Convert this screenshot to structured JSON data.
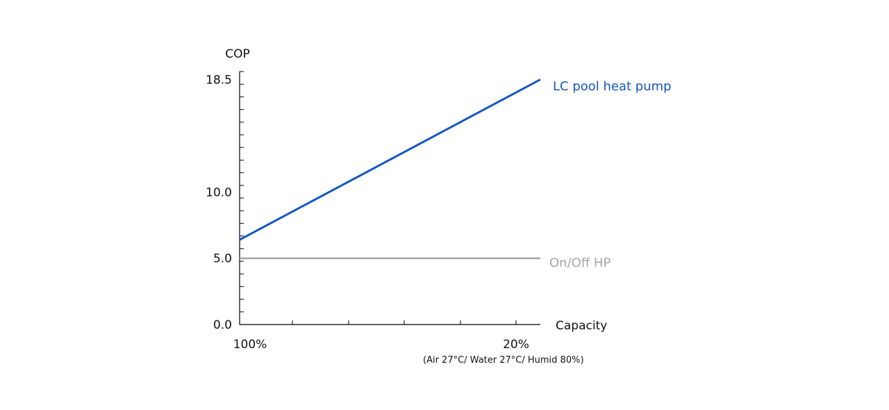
{
  "chart_data": {
    "type": "line",
    "ylabel": "COP",
    "xlabel": "Capacity",
    "x_note": "(Air 27°C/ Water 27°C/ Humid 80%)",
    "x_categories": [
      "100%",
      "20%"
    ],
    "y_ticks": [
      "18.5",
      "10.0",
      "5.0",
      "0.0"
    ],
    "y_tick_values": [
      18.5,
      10.0,
      5.0,
      0.0
    ],
    "ylim": [
      0,
      19.1
    ],
    "series": [
      {
        "name": "LC pool heat pump",
        "color": "#1455c0",
        "values": [
          6.4,
          18.5
        ]
      },
      {
        "name": "On/Off HP",
        "color": "#a6a6a6",
        "values": [
          5.0,
          5.0
        ]
      }
    ],
    "grid": false,
    "legend": "labels at line ends (right)"
  }
}
